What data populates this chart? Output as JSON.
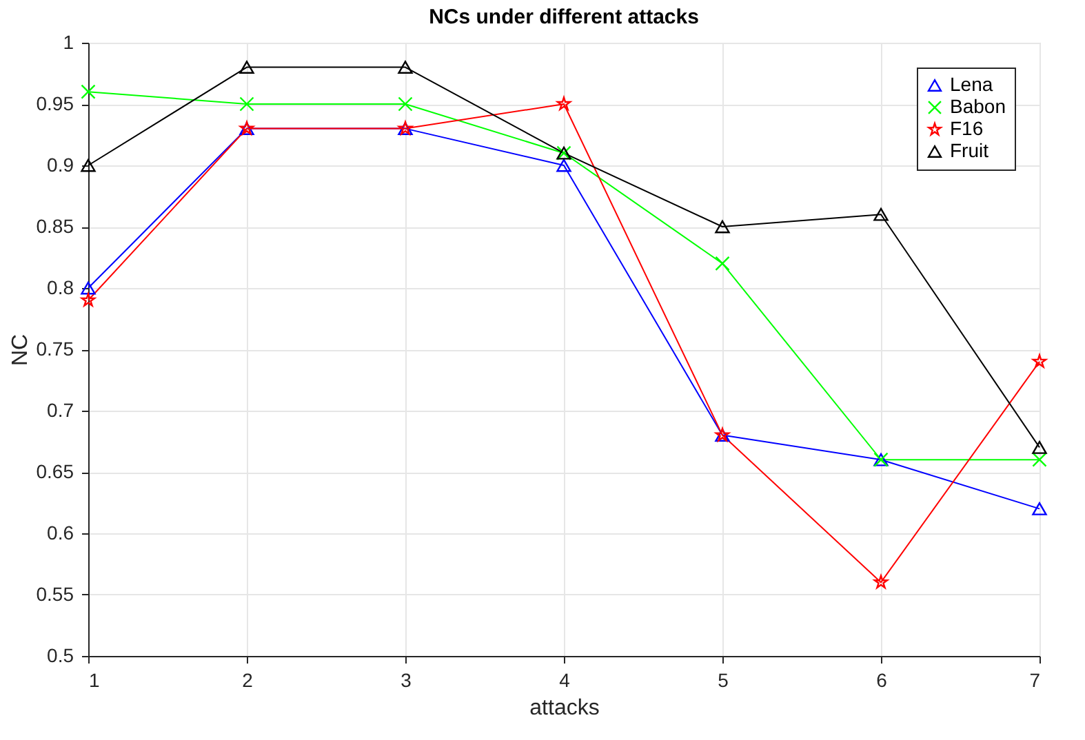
{
  "chart_data": {
    "type": "line",
    "title": "NCs under different attacks",
    "xlabel": "attacks",
    "ylabel": "NC",
    "x": [
      1,
      2,
      3,
      4,
      5,
      6,
      7
    ],
    "series": [
      {
        "name": "Lena",
        "color": "#0000ff",
        "marker": "triangle",
        "values": [
          0.8,
          0.93,
          0.93,
          0.9,
          0.68,
          0.66,
          0.62
        ]
      },
      {
        "name": "Babon",
        "color": "#00ff00",
        "marker": "cross",
        "values": [
          0.96,
          0.95,
          0.95,
          0.91,
          0.82,
          0.66,
          0.66
        ]
      },
      {
        "name": "F16",
        "color": "#ff0000",
        "marker": "star",
        "values": [
          0.79,
          0.93,
          0.93,
          0.95,
          0.68,
          0.56,
          0.74
        ]
      },
      {
        "name": "Fruit",
        "color": "#000000",
        "marker": "triangle",
        "values": [
          0.9,
          0.98,
          0.98,
          0.91,
          0.85,
          0.86,
          0.67
        ]
      }
    ],
    "xlim": [
      1,
      7
    ],
    "xticks": [
      1,
      2,
      3,
      4,
      5,
      6,
      7
    ],
    "ylim": [
      0.5,
      1
    ],
    "yticks": [
      0.5,
      0.55,
      0.6,
      0.65,
      0.7,
      0.75,
      0.8,
      0.85,
      0.9,
      0.95,
      1
    ],
    "grid": true,
    "legend": "top right",
    "line_style": "solid"
  }
}
